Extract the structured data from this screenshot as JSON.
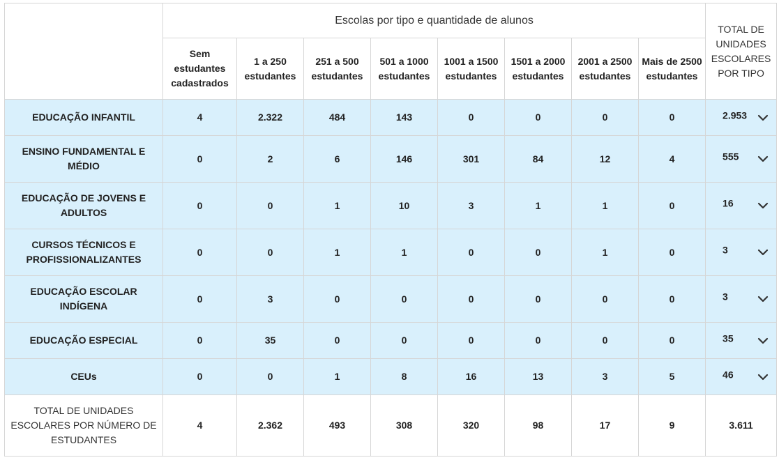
{
  "table": {
    "super_header": "Escolas por tipo e quantidade de alunos",
    "total_header": "TOTAL DE UNIDADES ESCOLARES POR TIPO",
    "columns": [
      "Sem estudantes cadastrados",
      "1 a 250 estudantes",
      "251 a 500 estudantes",
      "501 a 1000 estudantes",
      "1001 a 1500 estudantes",
      "1501 a 2000 estudantes",
      "2001 a 2500 estudantes",
      "Mais de 2500 estudantes"
    ],
    "rows": [
      {
        "label": "EDUCAÇÃO INFANTIL",
        "values": [
          "4",
          "2.322",
          "484",
          "143",
          "0",
          "0",
          "0",
          "0"
        ],
        "total": "2.953"
      },
      {
        "label": "ENSINO FUNDAMENTAL E MÉDIO",
        "values": [
          "0",
          "2",
          "6",
          "146",
          "301",
          "84",
          "12",
          "4"
        ],
        "total": "555"
      },
      {
        "label": "EDUCAÇÃO DE JOVENS E ADULTOS",
        "values": [
          "0",
          "0",
          "1",
          "10",
          "3",
          "1",
          "1",
          "0"
        ],
        "total": "16"
      },
      {
        "label": "CURSOS TÉCNICOS E PROFISSIONALIZANTES",
        "values": [
          "0",
          "0",
          "1",
          "1",
          "0",
          "0",
          "1",
          "0"
        ],
        "total": "3"
      },
      {
        "label": "EDUCAÇÃO ESCOLAR INDÍGENA",
        "values": [
          "0",
          "3",
          "0",
          "0",
          "0",
          "0",
          "0",
          "0"
        ],
        "total": "3"
      },
      {
        "label": "EDUCAÇÃO ESPECIAL",
        "values": [
          "0",
          "35",
          "0",
          "0",
          "0",
          "0",
          "0",
          "0"
        ],
        "total": "35"
      },
      {
        "label": "CEUs",
        "values": [
          "0",
          "0",
          "1",
          "8",
          "16",
          "13",
          "3",
          "5"
        ],
        "total": "46"
      }
    ],
    "footer": {
      "label": "TOTAL DE UNIDADES ESCOLARES POR NÚMERO DE ESTUDANTES",
      "values": [
        "4",
        "2.362",
        "493",
        "308",
        "320",
        "98",
        "17",
        "9"
      ],
      "total": "3.611"
    },
    "icons": {
      "expand": "chevron-down-icon"
    },
    "colors": {
      "row_bg": "#d9f0fc",
      "border": "#d6d6d6"
    }
  }
}
